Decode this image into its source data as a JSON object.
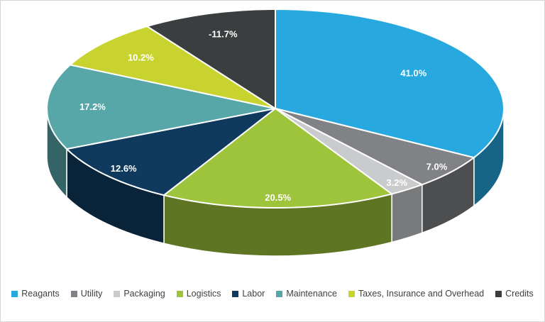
{
  "chart_data": {
    "type": "pie",
    "style": "pie-3d",
    "title": "",
    "legend_position": "bottom",
    "categories": [
      "Reagants",
      "Utility",
      "Packaging",
      "Logistics",
      "Labor",
      "Maintenance",
      "Taxes, Insurance and Overhead",
      "Credits"
    ],
    "values": [
      41.0,
      7.0,
      3.2,
      20.5,
      12.6,
      17.2,
      10.2,
      -11.7
    ],
    "data_labels": [
      "41.0%",
      "7.0%",
      "3.2%",
      "20.5%",
      "12.6%",
      "17.2%",
      "10.2%",
      "-11.7%"
    ],
    "colors": [
      "#27a9e0",
      "#808285",
      "#c9cbcd",
      "#9dc43b",
      "#0f3a5d",
      "#57a7a9",
      "#c9d32f",
      "#3b3e3f"
    ],
    "data_label_color": "#ffffff",
    "legend_text_color": "#404040",
    "background_color": "#ffffff"
  }
}
